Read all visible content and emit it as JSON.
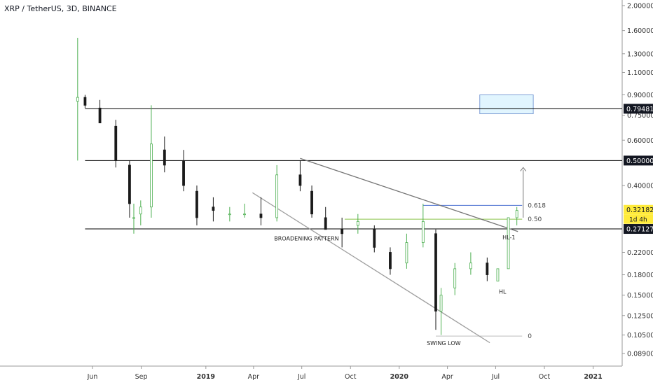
{
  "header": {
    "title": "XRP / TetherUS, 3D, BINANCE"
  },
  "chart_data": {
    "type": "candlestick",
    "title": "XRP / TetherUS, 3D, BINANCE",
    "y_scale": "log",
    "ylim": [
      0.084,
      2.05
    ],
    "x_range": [
      "2018-04-16",
      "2021-02-20"
    ],
    "y_ticks": [
      "2.00000",
      "1.60000",
      "1.30000",
      "1.10000",
      "0.90000",
      "0.75000",
      "0.60000",
      "0.50000",
      "0.40000",
      "0.32182",
      "0.27127",
      "0.22000",
      "0.18000",
      "0.15000",
      "0.12500",
      "0.10500",
      "0.08900"
    ],
    "y_tick_values": [
      2.0,
      1.6,
      1.3,
      1.1,
      0.9,
      0.75,
      0.6,
      0.5,
      0.4,
      0.32182,
      0.27127,
      0.22,
      0.18,
      0.15,
      0.125,
      0.105,
      0.089
    ],
    "x_ticks": [
      {
        "label": "Jun",
        "date": "2018-06-01",
        "bold": false
      },
      {
        "label": "Sep",
        "date": "2018-09-01",
        "bold": false
      },
      {
        "label": "2019",
        "date": "2019-01-01",
        "bold": true
      },
      {
        "label": "Apr",
        "date": "2019-04-01",
        "bold": false
      },
      {
        "label": "Jul",
        "date": "2019-07-01",
        "bold": false
      },
      {
        "label": "Oct",
        "date": "2019-10-01",
        "bold": false
      },
      {
        "label": "2020",
        "date": "2020-01-01",
        "bold": true
      },
      {
        "label": "Apr",
        "date": "2020-04-01",
        "bold": false
      },
      {
        "label": "Jul",
        "date": "2020-07-01",
        "bold": false
      },
      {
        "label": "Oct",
        "date": "2020-10-01",
        "bold": false
      },
      {
        "label": "2021",
        "date": "2021-01-01",
        "bold": true
      }
    ],
    "price_tags": [
      {
        "value": 0.79481,
        "label": "0.79481",
        "style": "dark"
      },
      {
        "value": 0.5,
        "label": "0.50000",
        "style": "dark"
      },
      {
        "value": 0.32182,
        "label": "0.32182",
        "style": "yellow",
        "sub": "1d 4h"
      },
      {
        "value": 0.27127,
        "label": "0.27127",
        "style": "dark"
      }
    ],
    "horizontal_levels": [
      {
        "value": 0.79481,
        "from": "2018-05-18",
        "to": "2021-02-20",
        "color": "#000000"
      },
      {
        "value": 0.5,
        "from": "2018-05-18",
        "to": "2021-02-20",
        "color": "#000000"
      },
      {
        "value": 0.27127,
        "from": "2018-05-18",
        "to": "2021-02-20",
        "color": "#000000"
      }
    ],
    "fib_levels": [
      {
        "label": "0.618",
        "value": 0.335,
        "from": "2020-02-15",
        "to": "2020-08-20",
        "color": "#4a6fd1"
      },
      {
        "label": "0.50",
        "value": 0.296,
        "from": "2019-09-20",
        "to": "2020-08-20",
        "color": "#8bc34a"
      },
      {
        "label": "0",
        "value": 0.104,
        "from": "2020-03-10",
        "to": "2020-08-20",
        "color": "#bdbdbd"
      }
    ],
    "trend_lines": [
      {
        "from": [
          "2019-06-28",
          0.51
        ],
        "to": [
          "2020-08-12",
          0.265
        ],
        "color": "#757575"
      },
      {
        "from": [
          "2019-03-30",
          0.375
        ],
        "to": [
          "2020-06-20",
          0.098
        ],
        "color": "#9e9e9e"
      }
    ],
    "zone": {
      "from_date": "2020-06-01",
      "to_date": "2020-09-10",
      "low": 0.76,
      "high": 0.9
    },
    "annotations": [
      {
        "text": "BROADENING  PATTERN",
        "date": "2019-07-10",
        "value": 0.245
      },
      {
        "text": "SWING LOW",
        "date": "2020-03-25",
        "value": 0.096
      },
      {
        "text": "HL",
        "date": "2020-07-14",
        "value": 0.152
      },
      {
        "text": "HL-1",
        "date": "2020-07-26",
        "value": 0.247
      }
    ],
    "candles": [
      [
        "2018-05-04",
        0.85,
        1.5,
        0.5,
        0.88
      ],
      [
        "2018-05-18",
        0.88,
        0.9,
        0.8,
        0.82
      ],
      [
        "2018-06-15",
        0.8,
        0.86,
        0.7,
        0.7
      ],
      [
        "2018-07-15",
        0.68,
        0.72,
        0.47,
        0.5
      ],
      [
        "2018-08-10",
        0.48,
        0.5,
        0.3,
        0.34
      ],
      [
        "2018-08-18",
        0.3,
        0.34,
        0.26,
        0.3
      ],
      [
        "2018-08-31",
        0.31,
        0.35,
        0.28,
        0.33
      ],
      [
        "2018-09-20",
        0.33,
        0.82,
        0.3,
        0.58
      ],
      [
        "2018-10-15",
        0.55,
        0.62,
        0.45,
        0.48
      ],
      [
        "2018-11-20",
        0.5,
        0.55,
        0.38,
        0.4
      ],
      [
        "2018-12-15",
        0.38,
        0.4,
        0.28,
        0.3
      ],
      [
        "2019-01-15",
        0.33,
        0.36,
        0.29,
        0.32
      ],
      [
        "2019-02-15",
        0.31,
        0.33,
        0.29,
        0.31
      ],
      [
        "2019-03-15",
        0.31,
        0.34,
        0.3,
        0.31
      ],
      [
        "2019-04-15",
        0.31,
        0.36,
        0.28,
        0.3
      ],
      [
        "2019-05-15",
        0.3,
        0.48,
        0.29,
        0.44
      ],
      [
        "2019-06-28",
        0.44,
        0.5,
        0.38,
        0.4
      ],
      [
        "2019-07-20",
        0.38,
        0.4,
        0.3,
        0.31
      ],
      [
        "2019-08-15",
        0.3,
        0.33,
        0.27,
        0.27
      ],
      [
        "2019-09-15",
        0.27,
        0.3,
        0.23,
        0.26
      ],
      [
        "2019-10-15",
        0.28,
        0.31,
        0.26,
        0.29
      ],
      [
        "2019-11-15",
        0.27,
        0.28,
        0.22,
        0.23
      ],
      [
        "2019-12-15",
        0.22,
        0.23,
        0.18,
        0.19
      ],
      [
        "2020-01-15",
        0.2,
        0.26,
        0.19,
        0.24
      ],
      [
        "2020-02-15",
        0.24,
        0.34,
        0.23,
        0.29
      ],
      [
        "2020-03-10",
        0.26,
        0.27,
        0.11,
        0.13
      ],
      [
        "2020-03-20",
        0.13,
        0.16,
        0.105,
        0.15
      ],
      [
        "2020-04-15",
        0.16,
        0.2,
        0.15,
        0.19
      ],
      [
        "2020-05-15",
        0.19,
        0.22,
        0.18,
        0.2
      ],
      [
        "2020-06-15",
        0.2,
        0.21,
        0.17,
        0.18
      ],
      [
        "2020-07-05",
        0.17,
        0.19,
        0.17,
        0.19
      ],
      [
        "2020-07-25",
        0.19,
        0.3,
        0.19,
        0.3
      ],
      [
        "2020-08-10",
        0.3,
        0.33,
        0.28,
        0.32
      ]
    ]
  }
}
